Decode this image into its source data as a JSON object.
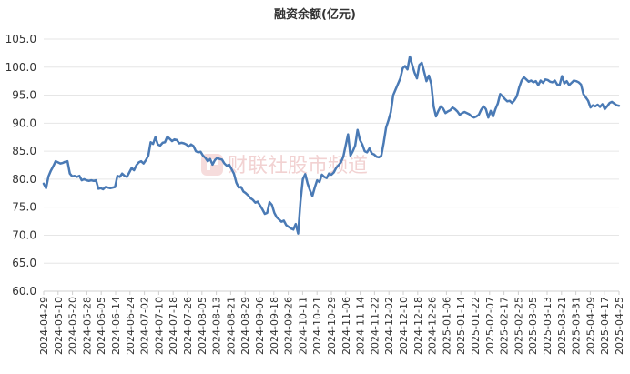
{
  "chart_data": {
    "type": "line",
    "title": "融资余额(亿元)",
    "xlabel": "",
    "ylabel": "",
    "ylim": [
      60,
      105
    ],
    "yticks": [
      "105.0",
      "100.0",
      "95.0",
      "90.0",
      "85.0",
      "80.0",
      "75.0",
      "70.0",
      "65.0",
      "60.0"
    ],
    "xtick_labels": [
      "2024-04-29",
      "2024-05-10",
      "2024-05-20",
      "2024-05-28",
      "2024-06-05",
      "2024-06-14",
      "2024-06-24",
      "2024-07-02",
      "2024-07-10",
      "2024-07-18",
      "2024-07-26",
      "2024-08-05",
      "2024-08-13",
      "2024-08-21",
      "2024-08-29",
      "2024-09-06",
      "2024-09-18",
      "2024-09-26",
      "2024-10-11",
      "2024-10-21",
      "2024-10-29",
      "2024-11-06",
      "2024-11-14",
      "2024-11-22",
      "2024-12-02",
      "2024-12-10",
      "2024-12-18",
      "2024-12-26",
      "2025-01-06",
      "2025-01-14",
      "2025-01-22",
      "2025-02-07",
      "2025-02-17",
      "2025-02-25",
      "2025-03-05",
      "2025-03-13",
      "2025-03-21",
      "2025-03-31",
      "2025-04-09",
      "2025-04-17",
      "2025-04-25"
    ],
    "grid": true,
    "legend": "none",
    "series": [
      {
        "color": "#4a7ab5",
        "values": [
          79.2,
          78.4,
          80.5,
          81.5,
          82.3,
          83.2,
          83.0,
          82.8,
          82.9,
          83.1,
          83.2,
          81.0,
          80.5,
          80.6,
          80.4,
          80.6,
          79.8,
          80.0,
          79.8,
          79.7,
          79.8,
          79.7,
          79.8,
          78.3,
          78.4,
          78.2,
          78.6,
          78.5,
          78.4,
          78.5,
          78.6,
          80.6,
          80.4,
          81.0,
          80.6,
          80.4,
          81.2,
          82.0,
          81.6,
          82.5,
          83.0,
          83.2,
          82.8,
          83.4,
          84.2,
          86.6,
          86.3,
          87.5,
          86.2,
          86.0,
          86.5,
          86.6,
          87.6,
          87.2,
          86.8,
          87.1,
          87.0,
          86.4,
          86.5,
          86.4,
          86.2,
          85.8,
          86.2,
          85.9,
          85.0,
          84.8,
          84.9,
          84.2,
          83.8,
          83.2,
          83.6,
          82.6,
          83.4,
          83.8,
          83.6,
          83.5,
          82.8,
          82.4,
          82.6,
          81.8,
          81.0,
          79.4,
          78.5,
          78.6,
          77.8,
          77.5,
          77.1,
          76.6,
          76.3,
          75.8,
          76.0,
          75.3,
          74.6,
          73.8,
          74.0,
          75.9,
          75.4,
          74.0,
          73.2,
          72.8,
          72.4,
          72.6,
          71.8,
          71.5,
          71.2,
          71.0,
          72.0,
          70.3,
          76.0,
          80.0,
          80.9,
          79.2,
          78.0,
          77.0,
          78.5,
          79.8,
          79.5,
          80.8,
          80.4,
          80.2,
          81.0,
          80.8,
          81.2,
          82.0,
          82.5,
          83.0,
          84.0,
          86.0,
          88.0,
          84.2,
          85.0,
          86.0,
          88.8,
          87.0,
          86.2,
          85.0,
          84.8,
          85.5,
          84.6,
          84.4,
          84.0,
          83.9,
          84.2,
          86.5,
          89.2,
          90.5,
          92.0,
          95.0,
          96.0,
          97.0,
          98.0,
          99.8,
          100.2,
          99.6,
          101.9,
          100.4,
          99.0,
          98.0,
          100.4,
          100.8,
          99.2,
          97.5,
          98.5,
          97.0,
          93.0,
          91.2,
          92.2,
          93.0,
          92.6,
          91.8,
          92.1,
          92.3,
          92.8,
          92.5,
          92.1,
          91.5,
          91.8,
          92.0,
          91.8,
          91.6,
          91.2,
          91.0,
          91.2,
          91.5,
          92.4,
          93.0,
          92.5,
          91.0,
          92.2,
          91.2,
          92.5,
          93.5,
          95.2,
          94.8,
          94.3,
          93.9,
          94.0,
          93.6,
          94.1,
          94.8,
          96.4,
          97.6,
          98.2,
          97.8,
          97.4,
          97.6,
          97.3,
          97.5,
          96.8,
          97.6,
          97.2,
          97.8,
          97.7,
          97.4,
          97.3,
          97.6,
          96.9,
          96.8,
          98.4,
          97.1,
          97.5,
          96.8,
          97.2,
          97.6,
          97.5,
          97.3,
          96.9,
          95.2,
          94.6,
          94.0,
          92.8,
          93.2,
          93.0,
          93.3,
          92.9,
          93.4,
          92.5,
          93.0,
          93.6,
          93.8,
          93.5,
          93.2,
          93.1
        ]
      }
    ]
  },
  "watermark": {
    "text": "财联社股市频道",
    "color": "#f2d2d2",
    "accent": "#e9a2a2"
  }
}
